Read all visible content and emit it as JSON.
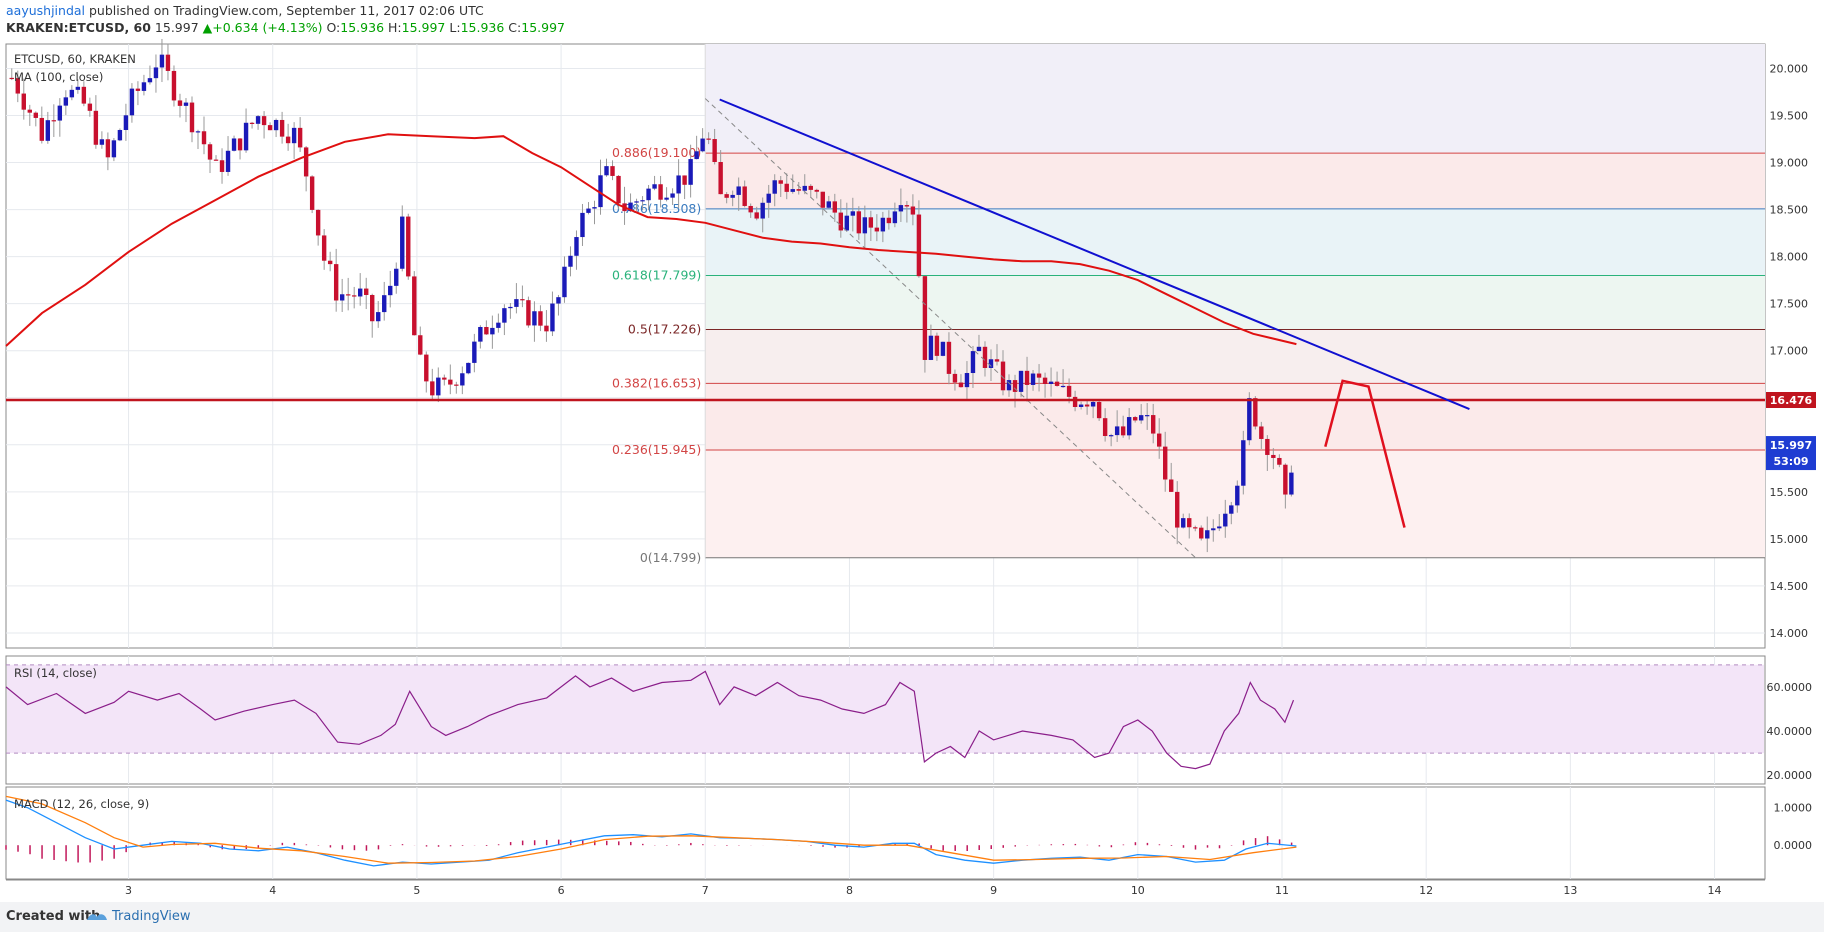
{
  "header": {
    "author": "aayushjindal",
    "published_text": "published on TradingView.com, September 11, 2017 02:06 UTC",
    "symbol": "KRAKEN:ETCUSD, 60",
    "last": "15.997",
    "change": "+0.634 (+4.13%)",
    "o_label": "O:",
    "o_value": "15.936",
    "h_label": "H:",
    "h_value": "15.997",
    "l_label": "L:",
    "l_value": "15.936",
    "c_label": "C:",
    "c_value": "15.997"
  },
  "overlay_labels": {
    "symbol_line": "ETCUSD, 60, KRAKEN",
    "ma_line": "MA (100, close)"
  },
  "footer": {
    "created_with": "Created with",
    "brand": "TradingView"
  },
  "colors": {
    "bull": "#1a1ab8",
    "bear": "#c8102e",
    "ma": "#e01010",
    "trendline": "#1010d0",
    "rsi": "#8a1e8a",
    "macd": "#1e90ff",
    "signal": "#ff7f0e",
    "hist": "#c2185b"
  },
  "chart_data": {
    "type": "candlestick",
    "symbol": "ETCUSD",
    "timeframe": "60",
    "x_ticks": [
      "3",
      "4",
      "5",
      "6",
      "7",
      "8",
      "9",
      "10",
      "11",
      "12",
      "13",
      "14"
    ],
    "x_tick_values": [
      3,
      4,
      5,
      6,
      7,
      8,
      9,
      10,
      11,
      12,
      13,
      14
    ],
    "x_range": [
      2.15,
      14.35
    ],
    "y_ticks": [
      "14.000",
      "14.500",
      "15.000",
      "15.500",
      "16.000",
      "16.500",
      "17.000",
      "17.500",
      "18.000",
      "18.500",
      "19.000",
      "19.500",
      "20.000"
    ],
    "y_range": [
      13.84,
      20.26
    ],
    "price_path": [
      [
        2.2,
        19.9
      ],
      [
        2.4,
        19.3
      ],
      [
        2.55,
        19.8
      ],
      [
        2.7,
        19.6
      ],
      [
        2.85,
        19.0
      ],
      [
        3.0,
        19.6
      ],
      [
        3.2,
        20.1
      ],
      [
        3.35,
        19.7
      ],
      [
        3.5,
        19.3
      ],
      [
        3.6,
        18.9
      ],
      [
        3.75,
        19.2
      ],
      [
        3.9,
        19.5
      ],
      [
        4.05,
        19.4
      ],
      [
        4.15,
        19.3
      ],
      [
        4.25,
        18.8
      ],
      [
        4.35,
        18.0
      ],
      [
        4.45,
        17.6
      ],
      [
        4.6,
        17.6
      ],
      [
        4.7,
        17.3
      ],
      [
        4.8,
        17.6
      ],
      [
        4.9,
        18.3
      ],
      [
        5.0,
        16.9
      ],
      [
        5.1,
        16.6
      ],
      [
        5.2,
        16.6
      ],
      [
        5.35,
        16.9
      ],
      [
        5.5,
        17.3
      ],
      [
        5.6,
        17.5
      ],
      [
        5.75,
        17.4
      ],
      [
        5.9,
        17.3
      ],
      [
        6.0,
        17.6
      ],
      [
        6.1,
        18.3
      ],
      [
        6.2,
        18.5
      ],
      [
        6.3,
        18.9
      ],
      [
        6.45,
        18.5
      ],
      [
        6.6,
        18.7
      ],
      [
        6.8,
        18.8
      ],
      [
        6.9,
        18.9
      ],
      [
        7.0,
        19.4
      ],
      [
        7.1,
        18.6
      ],
      [
        7.2,
        18.8
      ],
      [
        7.35,
        18.5
      ],
      [
        7.5,
        18.8
      ],
      [
        7.65,
        18.7
      ],
      [
        7.8,
        18.6
      ],
      [
        7.95,
        18.4
      ],
      [
        8.1,
        18.3
      ],
      [
        8.25,
        18.4
      ],
      [
        8.35,
        18.7
      ],
      [
        8.45,
        18.5
      ],
      [
        8.52,
        17.0
      ],
      [
        8.6,
        17.1
      ],
      [
        8.7,
        16.8
      ],
      [
        8.8,
        16.7
      ],
      [
        8.9,
        17.0
      ],
      [
        9.0,
        16.8
      ],
      [
        9.1,
        16.6
      ],
      [
        9.25,
        16.7
      ],
      [
        9.4,
        16.6
      ],
      [
        9.55,
        16.5
      ],
      [
        9.7,
        16.5
      ],
      [
        9.8,
        16.1
      ],
      [
        9.9,
        16.1
      ],
      [
        10.0,
        16.3
      ],
      [
        10.1,
        16.2
      ],
      [
        10.2,
        15.6
      ],
      [
        10.3,
        15.1
      ],
      [
        10.4,
        15.0
      ],
      [
        10.45,
        14.9
      ],
      [
        10.55,
        15.2
      ],
      [
        10.65,
        15.5
      ],
      [
        10.72,
        15.8
      ],
      [
        10.78,
        16.5
      ],
      [
        10.85,
        16.1
      ],
      [
        10.92,
        16.0
      ],
      [
        10.98,
        15.7
      ],
      [
        11.02,
        15.3
      ],
      [
        11.08,
        16.0
      ]
    ],
    "moving_average": {
      "name": "MA (100, close)",
      "points": [
        [
          2.15,
          17.05
        ],
        [
          2.4,
          17.4
        ],
        [
          2.7,
          17.7
        ],
        [
          3.0,
          18.05
        ],
        [
          3.3,
          18.35
        ],
        [
          3.6,
          18.6
        ],
        [
          3.9,
          18.85
        ],
        [
          4.2,
          19.05
        ],
        [
          4.5,
          19.22
        ],
        [
          4.8,
          19.3
        ],
        [
          5.1,
          19.28
        ],
        [
          5.4,
          19.26
        ],
        [
          5.6,
          19.28
        ],
        [
          5.8,
          19.1
        ],
        [
          6.0,
          18.95
        ],
        [
          6.2,
          18.75
        ],
        [
          6.4,
          18.55
        ],
        [
          6.6,
          18.42
        ],
        [
          6.8,
          18.4
        ],
        [
          7.0,
          18.36
        ],
        [
          7.2,
          18.28
        ],
        [
          7.4,
          18.2
        ],
        [
          7.6,
          18.16
        ],
        [
          7.8,
          18.14
        ],
        [
          8.0,
          18.1
        ],
        [
          8.2,
          18.07
        ],
        [
          8.4,
          18.05
        ],
        [
          8.6,
          18.03
        ],
        [
          8.8,
          18.0
        ],
        [
          9.0,
          17.97
        ],
        [
          9.2,
          17.95
        ],
        [
          9.4,
          17.95
        ],
        [
          9.6,
          17.92
        ],
        [
          9.8,
          17.85
        ],
        [
          10.0,
          17.75
        ],
        [
          10.2,
          17.6
        ],
        [
          10.4,
          17.45
        ],
        [
          10.6,
          17.3
        ],
        [
          10.8,
          17.18
        ],
        [
          11.1,
          17.07
        ]
      ]
    },
    "fibonacci_levels": [
      {
        "ratio": "0.886",
        "label": "0.886(19.100)",
        "value": 19.1
      },
      {
        "ratio": "0.786",
        "label": "0.786(18.508)",
        "value": 18.508
      },
      {
        "ratio": "0.618",
        "label": "0.618(17.799)",
        "value": 17.799
      },
      {
        "ratio": "0.5",
        "label": "0.5(17.226)",
        "value": 17.226
      },
      {
        "ratio": "0.382",
        "label": "0.382(16.653)",
        "value": 16.653
      },
      {
        "ratio": "0.236",
        "label": "0.236(15.945)",
        "value": 15.945
      },
      {
        "ratio": "0",
        "label": "0(14.799)",
        "value": 14.799
      }
    ],
    "fib_start_x": 7.0,
    "horizontal_line": {
      "value": 16.476,
      "label": "16.476"
    },
    "last_price": {
      "value": 15.997,
      "label": "15.997",
      "countdown": "53:09"
    },
    "trendline": {
      "from": [
        7.1,
        19.67
      ],
      "to": [
        12.3,
        16.38
      ]
    },
    "fib_anchor_line": {
      "from": [
        7.0,
        19.68
      ],
      "to": [
        10.4,
        14.8
      ]
    },
    "projection": [
      [
        11.3,
        15.98
      ],
      [
        11.42,
        16.68
      ],
      [
        11.6,
        16.62
      ],
      [
        11.85,
        15.12
      ]
    ],
    "rsi": {
      "name": "RSI (14, close)",
      "y_ticks": [
        "20.0000",
        "40.0000",
        "60.0000"
      ],
      "y_range": [
        16,
        74
      ],
      "bands": [
        30,
        70
      ],
      "points": [
        [
          2.15,
          60
        ],
        [
          2.3,
          52
        ],
        [
          2.5,
          57
        ],
        [
          2.7,
          48
        ],
        [
          2.9,
          53
        ],
        [
          3.0,
          58
        ],
        [
          3.2,
          54
        ],
        [
          3.35,
          57
        ],
        [
          3.5,
          50
        ],
        [
          3.6,
          45
        ],
        [
          3.8,
          49
        ],
        [
          4.0,
          52
        ],
        [
          4.15,
          54
        ],
        [
          4.3,
          48
        ],
        [
          4.45,
          35
        ],
        [
          4.6,
          34
        ],
        [
          4.75,
          38
        ],
        [
          4.85,
          43
        ],
        [
          4.95,
          58
        ],
        [
          5.1,
          42
        ],
        [
          5.2,
          38
        ],
        [
          5.35,
          42
        ],
        [
          5.5,
          47
        ],
        [
          5.7,
          52
        ],
        [
          5.9,
          55
        ],
        [
          6.0,
          60
        ],
        [
          6.1,
          65
        ],
        [
          6.2,
          60
        ],
        [
          6.35,
          64
        ],
        [
          6.5,
          58
        ],
        [
          6.7,
          62
        ],
        [
          6.9,
          63
        ],
        [
          7.0,
          67
        ],
        [
          7.1,
          52
        ],
        [
          7.2,
          60
        ],
        [
          7.35,
          56
        ],
        [
          7.5,
          62
        ],
        [
          7.65,
          56
        ],
        [
          7.8,
          54
        ],
        [
          7.95,
          50
        ],
        [
          8.1,
          48
        ],
        [
          8.25,
          52
        ],
        [
          8.35,
          62
        ],
        [
          8.45,
          58
        ],
        [
          8.52,
          26
        ],
        [
          8.6,
          30
        ],
        [
          8.7,
          33
        ],
        [
          8.8,
          28
        ],
        [
          8.9,
          40
        ],
        [
          9.0,
          36
        ],
        [
          9.2,
          40
        ],
        [
          9.4,
          38
        ],
        [
          9.55,
          36
        ],
        [
          9.7,
          28
        ],
        [
          9.8,
          30
        ],
        [
          9.9,
          42
        ],
        [
          10.0,
          45
        ],
        [
          10.1,
          40
        ],
        [
          10.2,
          30
        ],
        [
          10.3,
          24
        ],
        [
          10.4,
          23
        ],
        [
          10.5,
          25
        ],
        [
          10.6,
          40
        ],
        [
          10.7,
          48
        ],
        [
          10.78,
          62
        ],
        [
          10.85,
          54
        ],
        [
          10.95,
          50
        ],
        [
          11.02,
          44
        ],
        [
          11.08,
          54
        ]
      ]
    },
    "macd": {
      "name": "MACD (12, 26, close, 9)",
      "y_ticks": [
        "0.0000",
        "1.0000"
      ],
      "y_range": [
        -0.9,
        1.55
      ],
      "macd_points": [
        [
          2.15,
          1.2
        ],
        [
          2.3,
          1.0
        ],
        [
          2.5,
          0.6
        ],
        [
          2.7,
          0.2
        ],
        [
          2.9,
          -0.1
        ],
        [
          3.1,
          0.0
        ],
        [
          3.3,
          0.1
        ],
        [
          3.5,
          0.05
        ],
        [
          3.7,
          -0.1
        ],
        [
          3.9,
          -0.15
        ],
        [
          4.1,
          -0.05
        ],
        [
          4.3,
          -0.2
        ],
        [
          4.5,
          -0.4
        ],
        [
          4.7,
          -0.55
        ],
        [
          4.9,
          -0.45
        ],
        [
          5.1,
          -0.5
        ],
        [
          5.3,
          -0.45
        ],
        [
          5.5,
          -0.4
        ],
        [
          5.7,
          -0.2
        ],
        [
          5.9,
          -0.05
        ],
        [
          6.1,
          0.1
        ],
        [
          6.3,
          0.25
        ],
        [
          6.5,
          0.28
        ],
        [
          6.7,
          0.22
        ],
        [
          6.9,
          0.3
        ],
        [
          7.1,
          0.2
        ],
        [
          7.3,
          0.18
        ],
        [
          7.5,
          0.15
        ],
        [
          7.7,
          0.1
        ],
        [
          7.9,
          0.0
        ],
        [
          8.1,
          -0.05
        ],
        [
          8.3,
          0.05
        ],
        [
          8.45,
          0.05
        ],
        [
          8.6,
          -0.25
        ],
        [
          8.8,
          -0.4
        ],
        [
          9.0,
          -0.48
        ],
        [
          9.2,
          -0.4
        ],
        [
          9.4,
          -0.35
        ],
        [
          9.6,
          -0.32
        ],
        [
          9.8,
          -0.4
        ],
        [
          10.0,
          -0.25
        ],
        [
          10.2,
          -0.3
        ],
        [
          10.4,
          -0.45
        ],
        [
          10.6,
          -0.4
        ],
        [
          10.75,
          -0.1
        ],
        [
          10.9,
          0.05
        ],
        [
          11.1,
          -0.02
        ]
      ],
      "signal_points": [
        [
          2.15,
          1.3
        ],
        [
          2.4,
          1.1
        ],
        [
          2.7,
          0.6
        ],
        [
          2.9,
          0.2
        ],
        [
          3.1,
          -0.05
        ],
        [
          3.3,
          0.02
        ],
        [
          3.6,
          0.05
        ],
        [
          3.9,
          -0.08
        ],
        [
          4.2,
          -0.15
        ],
        [
          4.5,
          -0.3
        ],
        [
          4.8,
          -0.48
        ],
        [
          5.1,
          -0.46
        ],
        [
          5.4,
          -0.42
        ],
        [
          5.7,
          -0.3
        ],
        [
          6.0,
          -0.1
        ],
        [
          6.3,
          0.15
        ],
        [
          6.6,
          0.24
        ],
        [
          6.9,
          0.25
        ],
        [
          7.2,
          0.2
        ],
        [
          7.5,
          0.15
        ],
        [
          7.8,
          0.08
        ],
        [
          8.1,
          0.0
        ],
        [
          8.4,
          0.0
        ],
        [
          8.7,
          -0.2
        ],
        [
          9.0,
          -0.4
        ],
        [
          9.3,
          -0.38
        ],
        [
          9.6,
          -0.35
        ],
        [
          9.9,
          -0.34
        ],
        [
          10.2,
          -0.3
        ],
        [
          10.5,
          -0.38
        ],
        [
          10.8,
          -0.2
        ],
        [
          11.1,
          -0.05
        ]
      ],
      "histogram_range": [
        2.15,
        11.1
      ]
    }
  }
}
